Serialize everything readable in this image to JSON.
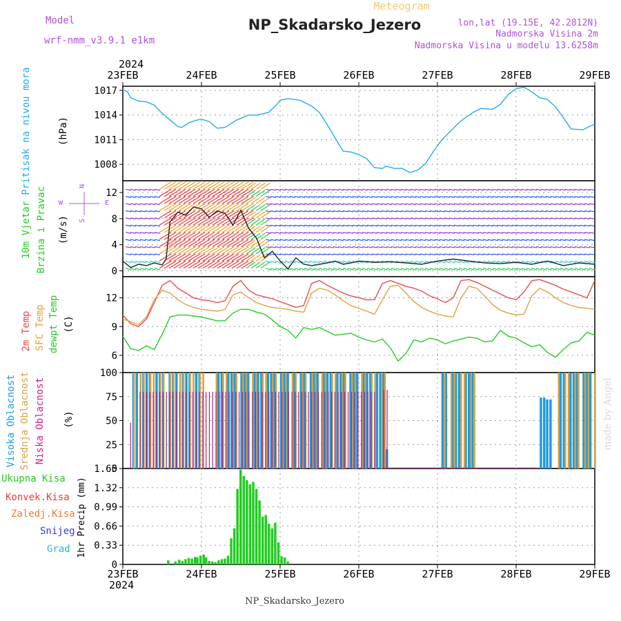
{
  "header": {
    "meteogram_label": "Meteogram",
    "model_label": "Model",
    "model_name": "wrf-nmm_v3.9.1 e1km",
    "station_title": "NP_Skadarsko_Jezero",
    "lonlat": "lon,lat (19.15E, 42.2812N)",
    "elevation": "Nadmorska Visina 2m",
    "model_elevation": "Nadmorska Visina u modelu 13.6258m",
    "year_top": "2024",
    "year_bottom": "2024",
    "footer_station": "NP_Skadarsko_Jezero",
    "watermark": "made by Angel"
  },
  "colors": {
    "pressure": "#22aaee",
    "temp2m": "#e84a4a",
    "sfc_temp": "#e0a040",
    "dewpt": "#22cc22",
    "high_cloud": "#1e9be0",
    "mid_cloud": "#d8a040",
    "low_cloud": "#aa2288",
    "total_precip": "#22cc22",
    "convective": "#e83a3a",
    "freezing": "#f07830",
    "snow": "#3a3ae0",
    "hail": "#22c0c0",
    "wind_purple": "#9933dd",
    "wind_blue": "#2255ff",
    "wind_red": "#ee3333",
    "wind_orange": "#ee9922",
    "wind_green": "#22cc44",
    "wind_cyan": "#22cccc"
  },
  "chart_data": [
    {
      "type": "line",
      "panel": "pressure",
      "ylabel_colored": "Pritisak na nivou mora",
      "ylabel_unit": "(hPa)",
      "x_ticks": [
        "23FEB",
        "24FEB",
        "25FEB",
        "26FEB",
        "27FEB",
        "28FEB",
        "29FEB"
      ],
      "y_ticks": [
        "1017",
        "1014",
        "1011",
        "1008"
      ],
      "ylim": [
        1006,
        1017.5
      ],
      "grid": true,
      "series": [
        {
          "name": "Pritisak na nivou mora",
          "x": [
            0,
            0.06,
            0.1,
            0.15,
            0.2,
            0.3,
            0.4,
            0.5,
            0.6,
            0.7,
            0.75,
            0.85,
            0.95,
            1.0,
            1.1,
            1.2,
            1.3,
            1.45,
            1.6,
            1.7,
            1.85,
            1.95,
            2.0,
            2.1,
            2.25,
            2.4,
            2.5,
            2.6,
            2.7,
            2.8,
            2.9,
            3.0,
            3.1,
            3.2,
            3.3,
            3.35,
            3.45,
            3.55,
            3.65,
            3.75,
            3.85,
            3.95,
            4.05,
            4.15,
            4.3,
            4.45,
            4.55,
            4.7,
            4.8,
            4.9,
            5.0,
            5.1,
            5.2,
            5.3,
            5.4,
            5.5,
            5.6,
            5.7,
            5.85,
            5.95,
            6.0
          ],
          "y": [
            1017.1,
            1016.8,
            1016.1,
            1015.9,
            1015.7,
            1015.6,
            1015.2,
            1014.2,
            1013.4,
            1012.6,
            1012.5,
            1013.1,
            1013.4,
            1013.5,
            1013.2,
            1012.4,
            1012.5,
            1013.4,
            1014.0,
            1014.0,
            1014.3,
            1015.2,
            1015.8,
            1016.0,
            1015.8,
            1015.1,
            1014.3,
            1012.8,
            1011.2,
            1009.6,
            1009.5,
            1009.2,
            1008.7,
            1007.6,
            1007.5,
            1007.8,
            1007.5,
            1007.5,
            1007.0,
            1007.3,
            1008.1,
            1009.6,
            1010.9,
            1011.9,
            1013.3,
            1014.3,
            1014.8,
            1014.7,
            1015.3,
            1016.5,
            1017.2,
            1017.4,
            1016.8,
            1016.1,
            1015.9,
            1015.0,
            1013.7,
            1012.3,
            1012.2,
            1012.7,
            1012.9
          ]
        }
      ]
    },
    {
      "type": "line",
      "panel": "wind",
      "ylabel_colored_1": "10m Vjetar",
      "ylabel_colored_2": "Brzina i Pravac",
      "ylabel_unit": "(m/s)",
      "compass_label_top": "N",
      "compass_label_left": "W",
      "compass_label_right": "E",
      "compass_label_bottom": "S",
      "y_ticks": [
        "12",
        "8",
        "4",
        "0"
      ],
      "ylim": [
        -0.9,
        13.8
      ],
      "grid": true,
      "series": [
        {
          "name": "10m Vjetar",
          "x": [
            0,
            0.1,
            0.2,
            0.3,
            0.4,
            0.5,
            0.55,
            0.6,
            0.7,
            0.8,
            0.9,
            1.0,
            1.1,
            1.2,
            1.3,
            1.4,
            1.5,
            1.6,
            1.7,
            1.8,
            1.9,
            2.0,
            2.1,
            2.2,
            2.3,
            2.4,
            2.5,
            2.6,
            2.7,
            2.8,
            2.9,
            3.0,
            3.2,
            3.4,
            3.6,
            3.8,
            4.0,
            4.2,
            4.4,
            4.6,
            4.8,
            5.0,
            5.2,
            5.4,
            5.6,
            5.8,
            6.0
          ],
          "y": [
            1.5,
            0.5,
            1.0,
            0.8,
            1.2,
            0.9,
            1.8,
            7.5,
            9.0,
            8.5,
            9.8,
            9.5,
            8.2,
            9.2,
            8.8,
            7.0,
            9.3,
            6.5,
            5.0,
            2.0,
            3.0,
            1.5,
            0.3,
            2.0,
            1.0,
            0.8,
            1.0,
            1.2,
            1.5,
            1.0,
            1.2,
            1.5,
            1.3,
            1.4,
            1.2,
            1.0,
            1.5,
            1.8,
            1.5,
            1.2,
            1.1,
            1.3,
            1.0,
            1.5,
            0.8,
            1.2,
            1.0
          ]
        }
      ]
    },
    {
      "type": "line",
      "panel": "temperature",
      "ylabel_colored_1": "2m Temp",
      "ylabel_colored_2": "SFC Temp",
      "ylabel_colored_3": "dewpt Temp",
      "ylabel_unit": "(C)",
      "y_ticks": [
        "12",
        "9",
        "6"
      ],
      "ylim": [
        4.2,
        14.2
      ],
      "grid": true,
      "series": [
        {
          "name": "2m Temp",
          "x": [
            0,
            0.1,
            0.2,
            0.3,
            0.4,
            0.5,
            0.6,
            0.7,
            0.8,
            0.9,
            1.0,
            1.1,
            1.2,
            1.3,
            1.4,
            1.5,
            1.6,
            1.7,
            1.8,
            1.9,
            2.0,
            2.1,
            2.2,
            2.3,
            2.4,
            2.5,
            2.6,
            2.7,
            2.8,
            2.9,
            3.0,
            3.1,
            3.2,
            3.3,
            3.4,
            3.5,
            3.6,
            3.7,
            3.8,
            3.9,
            4.0,
            4.1,
            4.2,
            4.3,
            4.4,
            4.5,
            4.6,
            4.7,
            4.8,
            4.9,
            5.0,
            5.1,
            5.2,
            5.3,
            5.4,
            5.5,
            5.6,
            5.7,
            5.8,
            5.9,
            6.0
          ],
          "y": [
            10.2,
            9.3,
            9.0,
            9.8,
            11.5,
            13.3,
            13.8,
            13.0,
            12.5,
            12.0,
            11.8,
            11.7,
            11.5,
            11.7,
            13.2,
            13.8,
            12.8,
            12.3,
            12.1,
            11.9,
            11.6,
            11.3,
            11.0,
            11.2,
            13.5,
            13.8,
            13.3,
            12.9,
            12.5,
            12.2,
            12.0,
            11.8,
            11.8,
            13.5,
            13.8,
            13.5,
            13.2,
            13.0,
            12.7,
            12.2,
            11.9,
            11.5,
            12.0,
            13.8,
            13.9,
            13.6,
            13.2,
            12.8,
            12.4,
            12.0,
            11.8,
            12.6,
            13.8,
            13.9,
            13.6,
            13.3,
            12.9,
            12.6,
            12.3,
            12.0,
            13.8
          ]
        },
        {
          "name": "SFC Temp",
          "x": [
            0,
            0.1,
            0.2,
            0.3,
            0.4,
            0.5,
            0.6,
            0.7,
            0.8,
            0.9,
            1.0,
            1.1,
            1.2,
            1.3,
            1.4,
            1.5,
            1.6,
            1.7,
            1.8,
            1.9,
            2.0,
            2.1,
            2.2,
            2.3,
            2.4,
            2.5,
            2.6,
            2.7,
            2.8,
            2.9,
            3.0,
            3.1,
            3.2,
            3.3,
            3.4,
            3.5,
            3.6,
            3.7,
            3.8,
            3.9,
            4.0,
            4.1,
            4.2,
            4.3,
            4.4,
            4.5,
            4.6,
            4.7,
            4.8,
            4.9,
            5.0,
            5.1,
            5.2,
            5.3,
            5.4,
            5.5,
            5.6,
            5.7,
            5.8,
            5.9,
            6.0
          ],
          "y": [
            9.8,
            9.5,
            9.2,
            10.0,
            11.8,
            12.8,
            12.5,
            11.8,
            11.3,
            11.0,
            10.8,
            10.7,
            10.6,
            10.8,
            12.3,
            12.6,
            12.0,
            11.5,
            11.2,
            11.0,
            10.9,
            10.8,
            10.6,
            10.5,
            12.5,
            13.0,
            12.8,
            12.3,
            11.7,
            11.2,
            10.9,
            10.6,
            10.3,
            11.8,
            13.2,
            13.3,
            12.5,
            11.6,
            11.0,
            10.6,
            10.3,
            10.1,
            10.0,
            12.0,
            13.2,
            13.0,
            12.2,
            11.3,
            10.7,
            10.4,
            10.2,
            10.3,
            12.2,
            13.0,
            12.6,
            12.0,
            11.5,
            11.2,
            11.0,
            10.9,
            10.8
          ]
        },
        {
          "name": "dewpt Temp",
          "x": [
            0,
            0.1,
            0.2,
            0.3,
            0.4,
            0.5,
            0.6,
            0.7,
            0.8,
            0.9,
            1.0,
            1.1,
            1.2,
            1.3,
            1.4,
            1.5,
            1.6,
            1.7,
            1.8,
            1.9,
            2.0,
            2.1,
            2.2,
            2.3,
            2.4,
            2.5,
            2.6,
            2.7,
            2.8,
            2.9,
            3.0,
            3.1,
            3.2,
            3.3,
            3.4,
            3.5,
            3.6,
            3.7,
            3.8,
            3.9,
            4.0,
            4.1,
            4.2,
            4.3,
            4.4,
            4.5,
            4.6,
            4.7,
            4.8,
            4.9,
            5.0,
            5.1,
            5.2,
            5.3,
            5.4,
            5.5,
            5.6,
            5.7,
            5.8,
            5.9,
            6.0
          ],
          "y": [
            8.0,
            6.7,
            6.5,
            7.0,
            6.6,
            8.2,
            10.0,
            10.2,
            10.2,
            10.1,
            10.0,
            9.8,
            9.6,
            9.6,
            10.4,
            10.8,
            10.8,
            10.5,
            10.3,
            9.7,
            9.0,
            8.6,
            7.8,
            8.9,
            8.7,
            8.9,
            8.5,
            8.1,
            8.2,
            8.3,
            7.9,
            7.6,
            7.4,
            7.7,
            6.8,
            5.4,
            6.2,
            7.6,
            7.4,
            7.8,
            7.6,
            7.2,
            7.5,
            7.7,
            7.9,
            7.8,
            7.4,
            7.5,
            8.6,
            8.0,
            7.8,
            7.3,
            6.9,
            7.1,
            6.3,
            5.8,
            6.6,
            7.3,
            7.5,
            8.4,
            8.1
          ]
        }
      ]
    },
    {
      "type": "bar",
      "panel": "clouds",
      "ylabel_colored_1": "Visoka Oblacnost",
      "ylabel_colored_2": "Srednja Oblacnost",
      "ylabel_colored_3": "Niska Oblacnost",
      "ylabel_unit": "(%)",
      "y_ticks": [
        "100",
        "75",
        "50",
        "25",
        "0"
      ],
      "ylim": [
        0,
        100
      ],
      "grid": true,
      "series": [
        {
          "name": "Visoka Oblacnost",
          "x_ranges": [
            [
              0.12,
              1.0,
              100
            ],
            [
              1.2,
              2.2,
              100
            ],
            [
              2.25,
              3.3,
              100
            ],
            [
              3.3,
              3.35,
              20
            ],
            [
              4.05,
              4.45,
              100
            ],
            [
              5.3,
              5.35,
              74
            ],
            [
              5.38,
              5.43,
              72
            ],
            [
              5.55,
              6.0,
              100
            ]
          ]
        },
        {
          "name": "Srednja Oblacnost",
          "x_ranges": [
            [
              0.1,
              1.05,
              100
            ],
            [
              1.15,
              3.3,
              100
            ],
            [
              4.05,
              4.5,
              100
            ],
            [
              5.5,
              6.0,
              100
            ]
          ]
        },
        {
          "name": "Niska Oblacnost",
          "x_ranges": [
            [
              0.08,
              0.12,
              48
            ],
            [
              0.2,
              3.2,
              80
            ],
            [
              3.3,
              3.35,
              82
            ]
          ]
        }
      ]
    },
    {
      "type": "bar",
      "panel": "precip",
      "ylabel_colored_1": "Ukupna Kisa",
      "ylabel_colored_2": "Konvek.Kisa",
      "ylabel_colored_3": "Zaledj.Kisa",
      "ylabel_colored_4": "Snijeg",
      "ylabel_colored_5": "Grad",
      "ylabel_unit": "1hr Precip (mm)",
      "x_ticks": [
        "23FEB",
        "24FEB",
        "25FEB",
        "26FEB",
        "27FEB",
        "28FEB",
        "29FEB"
      ],
      "y_ticks": [
        "1.65",
        "1.32",
        "0.99",
        "0.66",
        "0.33",
        "0"
      ],
      "ylim": [
        0,
        1.65
      ],
      "grid": true,
      "series": [
        {
          "name": "Ukupna Kisa",
          "x": [
            0.58,
            0.67,
            0.72,
            0.76,
            0.8,
            0.84,
            0.88,
            0.92,
            0.95,
            0.99,
            1.03,
            1.06,
            1.1,
            1.14,
            1.18,
            1.22,
            1.26,
            1.3,
            1.34,
            1.38,
            1.42,
            1.46,
            1.5,
            1.54,
            1.58,
            1.62,
            1.66,
            1.7,
            1.74,
            1.78,
            1.82,
            1.86,
            1.9,
            1.94,
            1.98,
            2.02,
            2.06,
            2.1
          ],
          "y": [
            0.07,
            0.05,
            0.08,
            0.06,
            0.09,
            0.11,
            0.1,
            0.13,
            0.12,
            0.15,
            0.17,
            0.12,
            0.06,
            0.05,
            0.04,
            0.07,
            0.09,
            0.1,
            0.15,
            0.45,
            0.62,
            1.3,
            1.63,
            1.52,
            1.45,
            1.38,
            1.42,
            1.3,
            1.1,
            0.82,
            0.85,
            0.7,
            0.62,
            0.72,
            0.38,
            0.14,
            0.12,
            0.05
          ]
        }
      ]
    }
  ]
}
